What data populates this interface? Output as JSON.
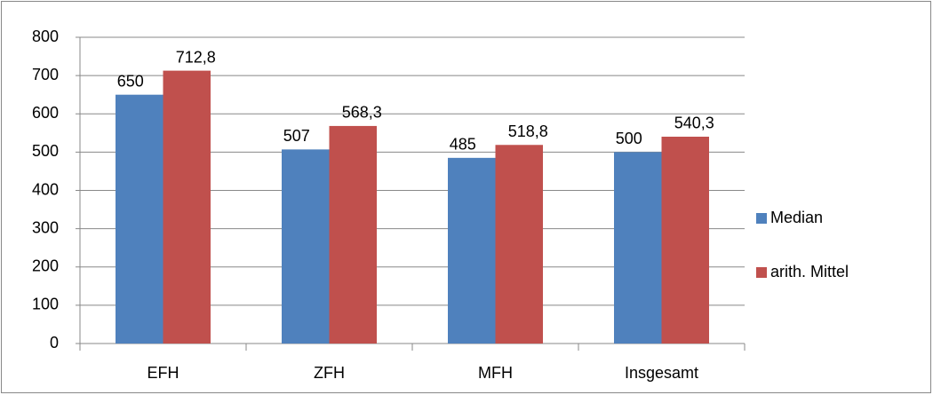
{
  "chart_data": {
    "type": "bar",
    "categories": [
      "EFH",
      "ZFH",
      "MFH",
      "Insgesamt"
    ],
    "series": [
      {
        "name": "Median",
        "color": "#4f81bd",
        "values": [
          650,
          507,
          485,
          500
        ]
      },
      {
        "name": "arith. Mittel",
        "color": "#c0504d",
        "values": [
          712.8,
          568.3,
          518.8,
          540.3
        ],
        "value_labels": [
          "712,8",
          "568,3",
          "518,8",
          "540,3"
        ]
      }
    ],
    "ylim": [
      0,
      800
    ],
    "yticks": [
      0,
      100,
      200,
      300,
      400,
      500,
      600,
      700,
      800
    ],
    "grid": true,
    "legend": "right"
  }
}
